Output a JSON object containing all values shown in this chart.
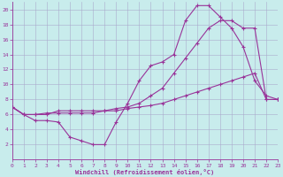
{
  "xlabel": "Windchill (Refroidissement éolien,°C)",
  "bg_color": "#c8ecec",
  "line_color": "#993399",
  "grid_color": "#aaaacc",
  "xmin": 0,
  "xmax": 23,
  "ymin": 0,
  "ymax": 21,
  "yticks": [
    2,
    4,
    6,
    8,
    10,
    12,
    14,
    16,
    18,
    20
  ],
  "xticks": [
    0,
    1,
    2,
    3,
    4,
    5,
    6,
    7,
    8,
    9,
    10,
    11,
    12,
    13,
    14,
    15,
    16,
    17,
    18,
    19,
    20,
    21,
    22,
    23
  ],
  "line1_x": [
    0,
    1,
    2,
    3,
    4,
    5,
    6,
    7,
    8,
    9,
    10,
    11,
    12,
    13,
    14,
    15,
    16,
    17,
    18,
    19,
    20,
    21,
    22,
    23
  ],
  "line1_y": [
    7.0,
    6.0,
    5.2,
    5.2,
    5.0,
    3.0,
    2.5,
    2.0,
    2.0,
    5.0,
    7.5,
    10.5,
    12.5,
    13.0,
    14.0,
    18.5,
    20.5,
    20.5,
    19.0,
    17.5,
    15.0,
    10.5,
    8.5,
    8.0
  ],
  "line2_x": [
    0,
    1,
    2,
    3,
    4,
    5,
    6,
    7,
    8,
    9,
    10,
    11,
    12,
    13,
    14,
    15,
    16,
    17,
    18,
    19,
    20,
    21,
    22,
    23
  ],
  "line2_y": [
    7.0,
    6.0,
    6.0,
    6.2,
    6.2,
    6.2,
    6.2,
    6.2,
    6.5,
    6.8,
    7.0,
    7.5,
    8.5,
    9.5,
    11.5,
    13.5,
    15.5,
    17.5,
    18.5,
    18.5,
    17.5,
    17.5,
    8.0,
    8.0
  ],
  "line3_x": [
    0,
    1,
    2,
    3,
    4,
    5,
    6,
    7,
    8,
    9,
    10,
    11,
    12,
    13,
    14,
    15,
    16,
    17,
    18,
    19,
    20,
    21,
    22,
    23
  ],
  "line3_y": [
    7.0,
    6.0,
    6.0,
    6.0,
    6.5,
    6.5,
    6.5,
    6.5,
    6.5,
    6.5,
    6.8,
    7.0,
    7.2,
    7.5,
    8.0,
    8.5,
    9.0,
    9.5,
    10.0,
    10.5,
    11.0,
    11.5,
    8.0,
    8.0
  ]
}
